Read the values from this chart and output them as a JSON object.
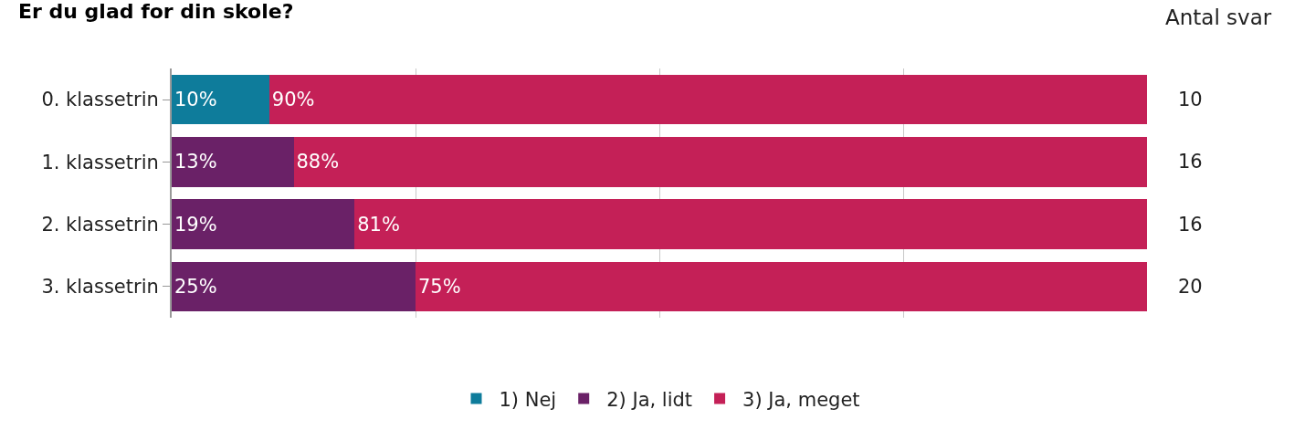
{
  "chart_data": {
    "type": "bar",
    "orientation": "horizontal",
    "stacked": true,
    "title": "Er du glad for din skole?",
    "categories": [
      "0. klassetrin",
      "1. klassetrin",
      "2. klassetrin",
      "3. klassetrin"
    ],
    "series": [
      {
        "name": "1) Nej",
        "color": "#0e7c9b",
        "values": [
          10,
          null,
          null,
          null
        ],
        "value_labels": [
          "10%",
          null,
          null,
          null
        ]
      },
      {
        "name": "2) Ja, lidt",
        "color": "#6a2167",
        "values": [
          null,
          12.5,
          18.75,
          25
        ],
        "value_labels": [
          null,
          "13%",
          "19%",
          "25%"
        ]
      },
      {
        "name": "3) Ja, meget",
        "color": "#c42057",
        "values": [
          90,
          87.5,
          81.25,
          75
        ],
        "value_labels": [
          "90%",
          "88%",
          "81%",
          "75%"
        ]
      }
    ],
    "xlim": [
      0,
      100
    ],
    "xticks": [
      {
        "value": 0,
        "label": null
      },
      {
        "value": 25,
        "label": null
      },
      {
        "value": 50,
        "label": null
      },
      {
        "value": 75,
        "label": null
      }
    ],
    "tick_labels": "y",
    "grid": "x",
    "legend": "bottom",
    "annotations": [
      "Antal svar",
      "10",
      "16",
      "16",
      "20"
    ]
  }
}
